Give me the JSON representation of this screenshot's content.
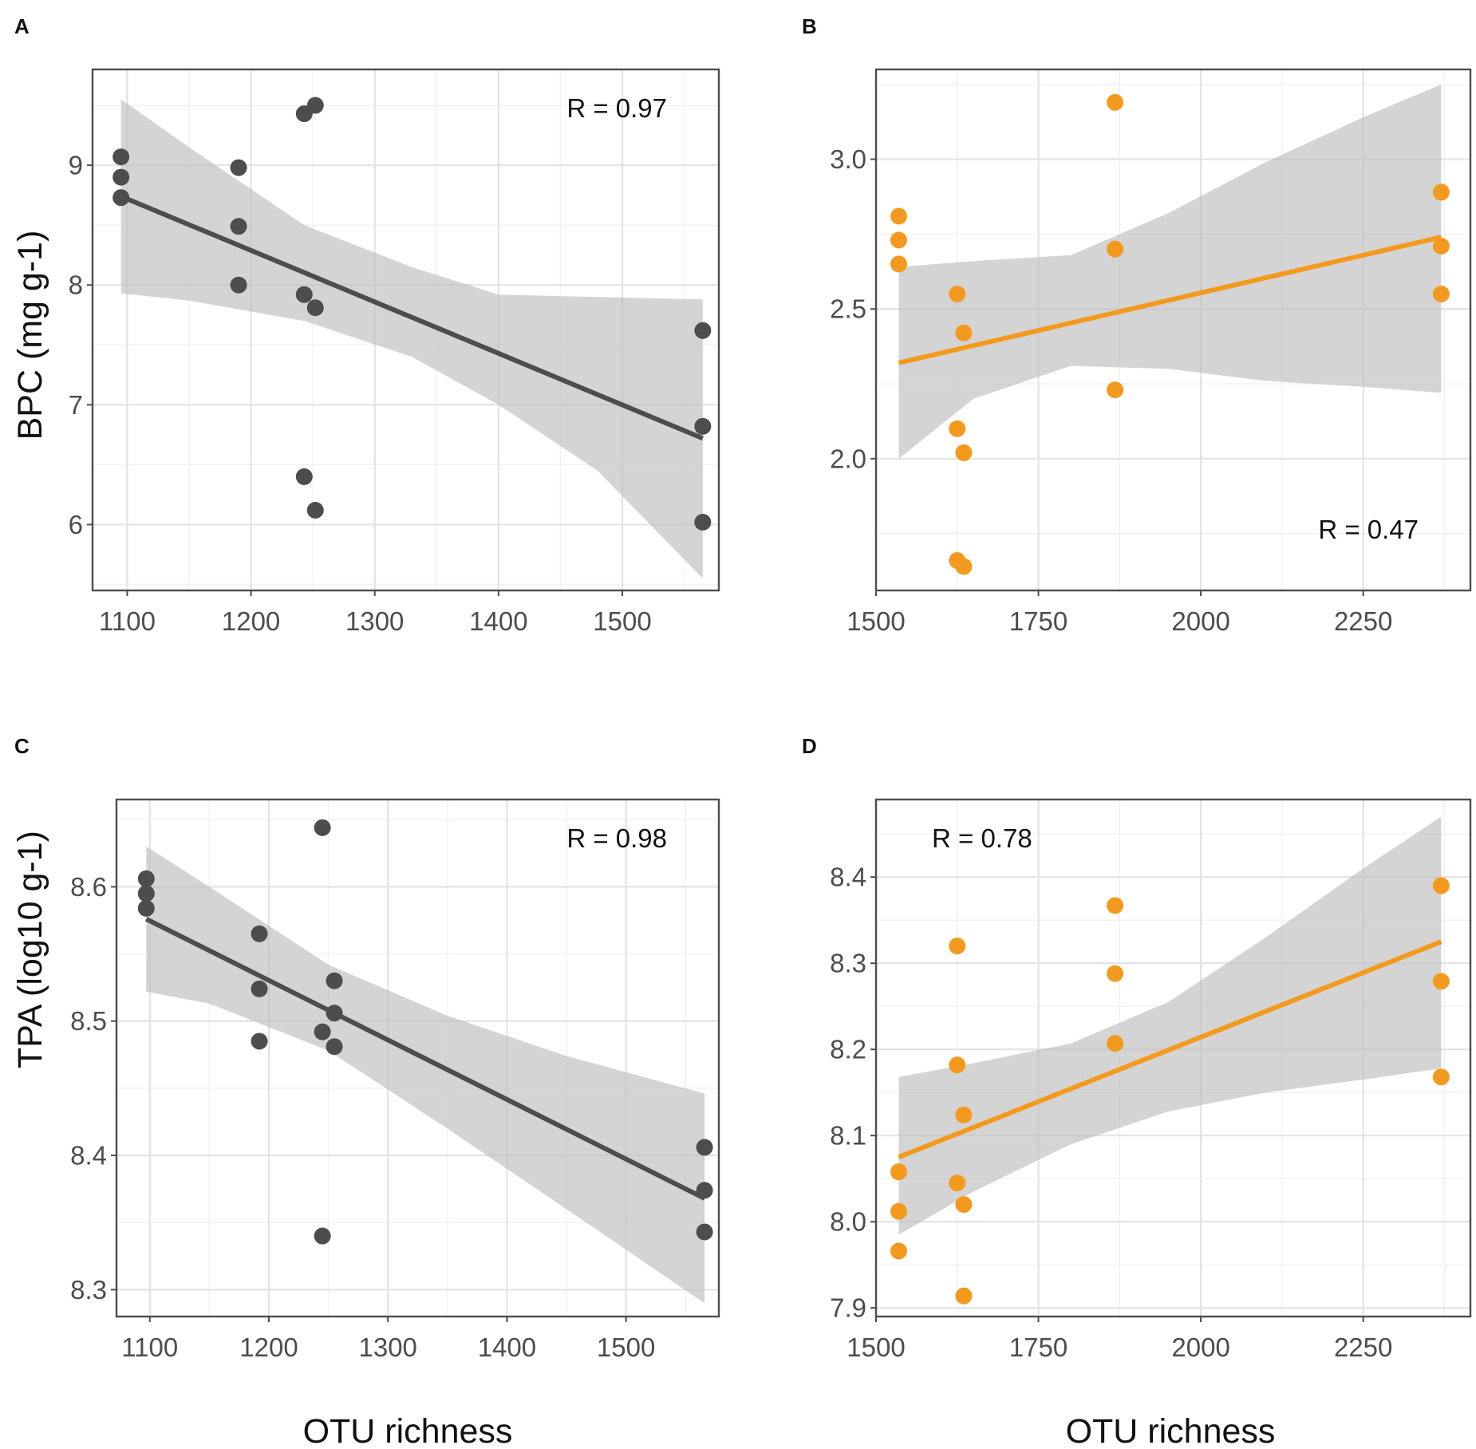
{
  "figure": {
    "x_title": "OTU richness",
    "colors": {
      "dark": "#4d4d4d",
      "orange": "#f39a1e",
      "band": "#bdbdbd"
    }
  },
  "chart_data": [
    {
      "panel": "A",
      "type": "scatter",
      "xlabel": "",
      "ylabel": "BPC (mg g-1)",
      "annotation": "R = 0.97",
      "annotation_position": "top-right",
      "color": "#4d4d4d",
      "xlim": [
        1072,
        1578
      ],
      "ylim": [
        5.45,
        9.8
      ],
      "xticks": [
        1100,
        1200,
        1300,
        1400,
        1500
      ],
      "xtick_labels": [
        "1100",
        "1200",
        "1300",
        "1400",
        "1500"
      ],
      "yticks": [
        6,
        7,
        8,
        9
      ],
      "ytick_labels": [
        "6",
        "7",
        "8",
        "9"
      ],
      "x": [
        1095,
        1095,
        1095,
        1190,
        1190,
        1190,
        1243,
        1243,
        1243,
        1252,
        1252,
        1252,
        1565,
        1565,
        1565
      ],
      "y": [
        9.07,
        8.9,
        8.73,
        8.98,
        8.49,
        8.0,
        9.43,
        7.92,
        6.4,
        9.5,
        7.81,
        6.12,
        7.62,
        6.82,
        6.02
      ],
      "fit": {
        "x": [
          1095,
          1565
        ],
        "y": [
          8.74,
          6.72
        ]
      },
      "band": {
        "x": [
          1095,
          1150,
          1243,
          1330,
          1400,
          1480,
          1565
        ],
        "lower": [
          7.93,
          7.87,
          7.7,
          7.4,
          7.0,
          6.45,
          5.55
        ],
        "upper": [
          9.55,
          9.15,
          8.5,
          8.15,
          7.92,
          7.9,
          7.88
        ]
      }
    },
    {
      "panel": "B",
      "type": "scatter",
      "xlabel": "",
      "ylabel": "",
      "annotation": "R = 0.47",
      "annotation_position": "bottom-right",
      "color": "#f39a1e",
      "xlim": [
        1500,
        2415
      ],
      "ylim": [
        1.56,
        3.3
      ],
      "xticks": [
        1500,
        1750,
        2000,
        2250
      ],
      "xtick_labels": [
        "1500",
        "1750",
        "2000",
        "2250"
      ],
      "yticks": [
        2.0,
        2.5,
        3.0
      ],
      "ytick_labels": [
        "2.0",
        "2.5",
        "3.0"
      ],
      "x": [
        1535,
        1535,
        1535,
        1625,
        1625,
        1625,
        1635,
        1635,
        1635,
        1868,
        1868,
        1868,
        2370,
        2370,
        2370
      ],
      "y": [
        2.81,
        2.73,
        2.65,
        2.55,
        2.1,
        1.66,
        2.42,
        2.02,
        1.64,
        3.19,
        2.7,
        2.23,
        2.89,
        2.71,
        2.55
      ],
      "fit": {
        "x": [
          1535,
          2370
        ],
        "y": [
          2.32,
          2.74
        ]
      },
      "band": {
        "x": [
          1535,
          1650,
          1800,
          1950,
          2100,
          2250,
          2370
        ],
        "lower": [
          2.0,
          2.2,
          2.31,
          2.3,
          2.26,
          2.24,
          2.22
        ],
        "upper": [
          2.64,
          2.66,
          2.68,
          2.82,
          2.99,
          3.14,
          3.25
        ]
      }
    },
    {
      "panel": "C",
      "type": "scatter",
      "xlabel": "OTU richness",
      "ylabel": "TPA (log10 g-1)",
      "annotation": "R = 0.98",
      "annotation_position": "top-right",
      "color": "#4d4d4d",
      "xlim": [
        1072,
        1578
      ],
      "ylim": [
        8.28,
        8.665
      ],
      "xticks": [
        1100,
        1200,
        1300,
        1400,
        1500
      ],
      "xtick_labels": [
        "1100",
        "1200",
        "1300",
        "1400",
        "1500"
      ],
      "yticks": [
        8.3,
        8.4,
        8.5,
        8.6
      ],
      "ytick_labels": [
        "8.3",
        "8.4",
        "8.5",
        "8.6"
      ],
      "x": [
        1097,
        1097,
        1097,
        1192,
        1192,
        1192,
        1245,
        1245,
        1245,
        1255,
        1255,
        1255,
        1566,
        1566,
        1566
      ],
      "y": [
        8.606,
        8.595,
        8.584,
        8.565,
        8.524,
        8.485,
        8.644,
        8.492,
        8.34,
        8.53,
        8.506,
        8.481,
        8.406,
        8.374,
        8.343
      ],
      "fit": {
        "x": [
          1097,
          1566
        ],
        "y": [
          8.576,
          8.368
        ]
      },
      "band": {
        "x": [
          1097,
          1150,
          1250,
          1350,
          1450,
          1566
        ],
        "lower": [
          8.522,
          8.513,
          8.478,
          8.42,
          8.36,
          8.29
        ],
        "upper": [
          8.63,
          8.6,
          8.542,
          8.504,
          8.474,
          8.446
        ]
      }
    },
    {
      "panel": "D",
      "type": "scatter",
      "xlabel": "OTU richness",
      "ylabel": "",
      "annotation": "R = 0.78",
      "annotation_position": "top-left",
      "color": "#f39a1e",
      "xlim": [
        1500,
        2415
      ],
      "ylim": [
        7.89,
        8.49
      ],
      "xticks": [
        1500,
        1750,
        2000,
        2250
      ],
      "xtick_labels": [
        "1500",
        "1750",
        "2000",
        "2250"
      ],
      "yticks": [
        7.9,
        8.0,
        8.1,
        8.2,
        8.3,
        8.4
      ],
      "ytick_labels": [
        "7.9",
        "8.0",
        "8.1",
        "8.2",
        "8.3",
        "8.4"
      ],
      "x": [
        1535,
        1535,
        1535,
        1625,
        1625,
        1625,
        1635,
        1635,
        1635,
        1868,
        1868,
        1868,
        2370,
        2370,
        2370
      ],
      "y": [
        8.058,
        8.012,
        7.966,
        8.32,
        8.182,
        8.045,
        8.124,
        8.02,
        7.914,
        8.367,
        8.288,
        8.207,
        8.39,
        8.279,
        8.168
      ],
      "fit": {
        "x": [
          1535,
          2370
        ],
        "y": [
          8.075,
          8.325
        ]
      },
      "band": {
        "x": [
          1535,
          1650,
          1800,
          1950,
          2100,
          2250,
          2370
        ],
        "lower": [
          7.985,
          8.035,
          8.09,
          8.128,
          8.15,
          8.165,
          8.178
        ],
        "upper": [
          8.168,
          8.184,
          8.207,
          8.255,
          8.33,
          8.41,
          8.47
        ]
      }
    }
  ]
}
